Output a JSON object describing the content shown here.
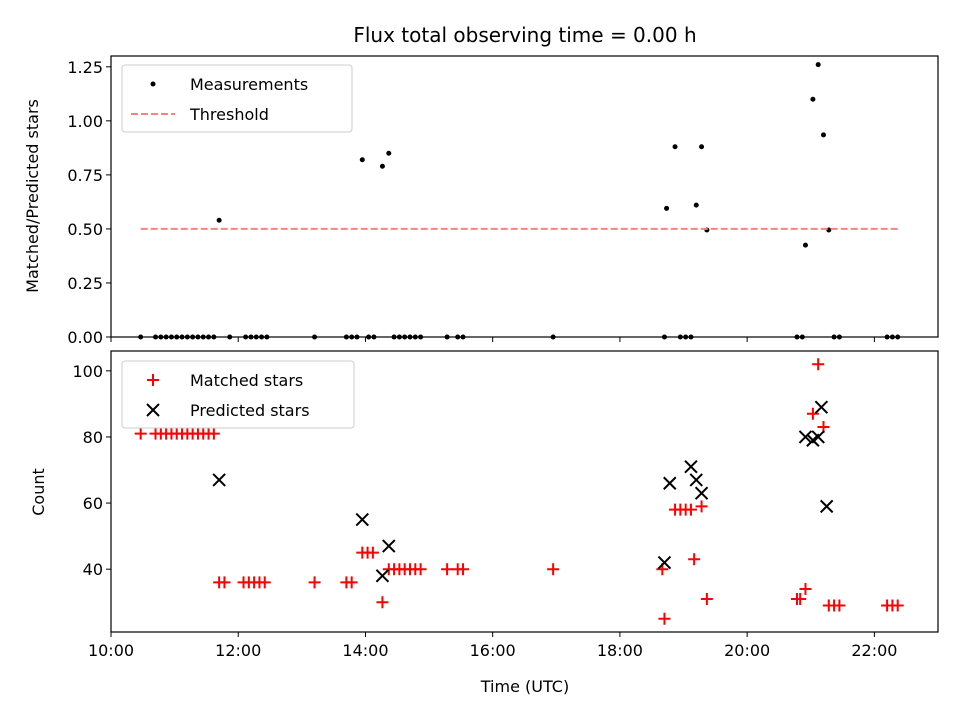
{
  "title": "Flux total observing time = 0.00 h",
  "colors": {
    "measurement": "#000000",
    "threshold": "#ff8080",
    "matched": "#ff0000",
    "predicted": "#000000"
  },
  "chart_data": [
    {
      "type": "scatter",
      "ylabel": "Matched/Predicted stars",
      "xlim": [
        "10:00",
        "23:00"
      ],
      "ylim": [
        0,
        1.3
      ],
      "yticks": [
        0.0,
        0.25,
        0.5,
        0.75,
        1.0,
        1.25
      ],
      "ytick_labels": [
        "0.00",
        "0.25",
        "0.50",
        "0.75",
        "1.00",
        "1.25"
      ],
      "legend": {
        "placement": "top-left",
        "entries": [
          "Measurements",
          "Threshold"
        ]
      },
      "series": [
        {
          "name": "Measurements",
          "marker": "dot",
          "points": [
            [
              "10:28",
              0
            ],
            [
              "10:42",
              0
            ],
            [
              "10:47",
              0
            ],
            [
              "10:52",
              0
            ],
            [
              "10:57",
              0
            ],
            [
              "11:02",
              0
            ],
            [
              "11:07",
              0
            ],
            [
              "11:12",
              0
            ],
            [
              "11:17",
              0
            ],
            [
              "11:22",
              0
            ],
            [
              "11:27",
              0
            ],
            [
              "11:32",
              0
            ],
            [
              "11:37",
              0
            ],
            [
              "11:42",
              0.54
            ],
            [
              "11:52",
              0
            ],
            [
              "12:07",
              0
            ],
            [
              "12:12",
              0
            ],
            [
              "12:17",
              0
            ],
            [
              "12:22",
              0
            ],
            [
              "12:27",
              0
            ],
            [
              "13:12",
              0
            ],
            [
              "13:42",
              0
            ],
            [
              "13:47",
              0
            ],
            [
              "13:52",
              0
            ],
            [
              "13:57",
              0.82
            ],
            [
              "14:03",
              0
            ],
            [
              "14:08",
              0
            ],
            [
              "14:16",
              0.79
            ],
            [
              "14:22",
              0.85
            ],
            [
              "14:27",
              0
            ],
            [
              "14:32",
              0
            ],
            [
              "14:37",
              0
            ],
            [
              "14:42",
              0
            ],
            [
              "14:47",
              0
            ],
            [
              "14:52",
              0
            ],
            [
              "15:17",
              0
            ],
            [
              "15:27",
              0
            ],
            [
              "15:32",
              0
            ],
            [
              "16:57",
              0
            ],
            [
              "18:42",
              0
            ],
            [
              "18:44",
              0.595
            ],
            [
              "18:52",
              0.88
            ],
            [
              "18:57",
              0
            ],
            [
              "19:02",
              0
            ],
            [
              "19:07",
              0
            ],
            [
              "19:12",
              0.61
            ],
            [
              "19:17",
              0.88
            ],
            [
              "19:22",
              0.495
            ],
            [
              "20:47",
              0
            ],
            [
              "20:52",
              0
            ],
            [
              "20:55",
              0.425
            ],
            [
              "21:02",
              1.1
            ],
            [
              "21:07",
              1.26
            ],
            [
              "21:12",
              0.935
            ],
            [
              "21:17",
              0.495
            ],
            [
              "21:22",
              0
            ],
            [
              "21:27",
              0
            ],
            [
              "22:12",
              0
            ],
            [
              "22:17",
              0
            ],
            [
              "22:22",
              0
            ]
          ]
        },
        {
          "name": "Threshold",
          "style": "dashed",
          "y": 0.5,
          "x_range": [
            "10:28",
            "22:22"
          ]
        }
      ]
    },
    {
      "type": "scatter",
      "ylabel": "Count",
      "xlabel": "Time (UTC)",
      "xlim": [
        "10:00",
        "23:00"
      ],
      "ylim": [
        21,
        106
      ],
      "yticks": [
        40,
        60,
        80,
        100
      ],
      "xticks": [
        "10:00",
        "12:00",
        "14:00",
        "16:00",
        "18:00",
        "20:00",
        "22:00"
      ],
      "legend": {
        "placement": "top-left",
        "entries": [
          "Matched stars",
          "Predicted stars"
        ]
      },
      "series": [
        {
          "name": "Matched stars",
          "marker": "plus",
          "points": [
            [
              "10:28",
              81
            ],
            [
              "10:42",
              81
            ],
            [
              "10:47",
              81
            ],
            [
              "10:52",
              81
            ],
            [
              "10:57",
              81
            ],
            [
              "11:02",
              81
            ],
            [
              "11:07",
              81
            ],
            [
              "11:12",
              81
            ],
            [
              "11:17",
              81
            ],
            [
              "11:22",
              81
            ],
            [
              "11:27",
              81
            ],
            [
              "11:32",
              81
            ],
            [
              "11:37",
              81
            ],
            [
              "11:42",
              36
            ],
            [
              "11:47",
              36
            ],
            [
              "12:05",
              36
            ],
            [
              "12:10",
              36
            ],
            [
              "12:15",
              36
            ],
            [
              "12:20",
              36
            ],
            [
              "12:25",
              36
            ],
            [
              "13:12",
              36
            ],
            [
              "13:42",
              36
            ],
            [
              "13:47",
              36
            ],
            [
              "13:57",
              45
            ],
            [
              "14:02",
              45
            ],
            [
              "14:07",
              45
            ],
            [
              "14:16",
              30
            ],
            [
              "14:22",
              40
            ],
            [
              "14:27",
              40
            ],
            [
              "14:32",
              40
            ],
            [
              "14:37",
              40
            ],
            [
              "14:42",
              40
            ],
            [
              "14:47",
              40
            ],
            [
              "14:52",
              40
            ],
            [
              "15:17",
              40
            ],
            [
              "15:27",
              40
            ],
            [
              "15:32",
              40
            ],
            [
              "16:57",
              40
            ],
            [
              "18:40",
              40
            ],
            [
              "18:42",
              25
            ],
            [
              "18:52",
              58
            ],
            [
              "18:57",
              58
            ],
            [
              "19:02",
              58
            ],
            [
              "19:07",
              58
            ],
            [
              "19:10",
              43
            ],
            [
              "19:17",
              59
            ],
            [
              "19:22",
              31
            ],
            [
              "20:47",
              31
            ],
            [
              "20:50",
              31
            ],
            [
              "20:55",
              34
            ],
            [
              "21:02",
              87
            ],
            [
              "21:07",
              102
            ],
            [
              "21:12",
              83
            ],
            [
              "21:17",
              29
            ],
            [
              "21:22",
              29
            ],
            [
              "21:27",
              29
            ],
            [
              "22:12",
              29
            ],
            [
              "22:17",
              29
            ],
            [
              "22:22",
              29
            ]
          ]
        },
        {
          "name": "Predicted stars",
          "marker": "x",
          "points": [
            [
              "11:42",
              67
            ],
            [
              "13:57",
              55
            ],
            [
              "14:16",
              38
            ],
            [
              "14:22",
              47
            ],
            [
              "18:42",
              42
            ],
            [
              "18:47",
              66
            ],
            [
              "19:07",
              71
            ],
            [
              "19:12",
              67
            ],
            [
              "19:17",
              63
            ],
            [
              "20:55",
              80
            ],
            [
              "21:02",
              79
            ],
            [
              "21:07",
              80
            ],
            [
              "21:10",
              89
            ],
            [
              "21:15",
              59
            ]
          ]
        }
      ]
    }
  ]
}
